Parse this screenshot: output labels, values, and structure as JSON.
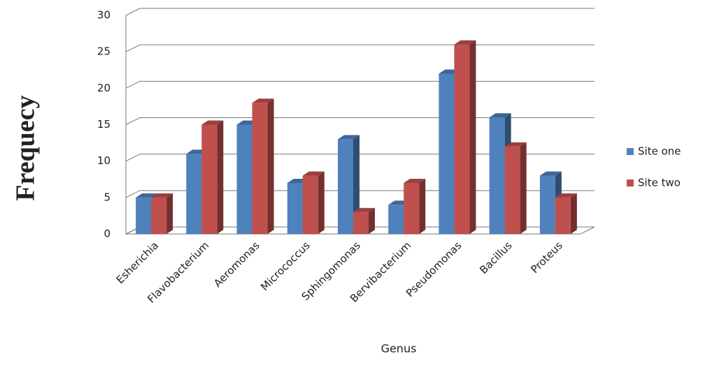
{
  "chart_data": {
    "type": "bar3d",
    "y_label": "Frequecy",
    "x_label": "Genus",
    "categories": [
      "Esherichia",
      "Flavobacterium",
      "Aeromonas",
      "Micrococcus",
      "Sphingomonas",
      "Bervibacterium",
      "Pseudomonas",
      "Bacillus",
      "Proteus"
    ],
    "series": [
      {
        "name": "Site one",
        "color": "#4f81bd",
        "values": [
          5,
          11,
          15,
          7,
          13,
          4,
          22,
          16,
          8
        ]
      },
      {
        "name": "Site two",
        "color": "#c0504d",
        "values": [
          5,
          15,
          18,
          8,
          3,
          7,
          26,
          12,
          5
        ]
      }
    ],
    "ylim": [
      0,
      30
    ],
    "yticks": [
      0,
      5,
      10,
      15,
      20,
      25,
      30
    ],
    "grid": true,
    "legend": "right"
  }
}
